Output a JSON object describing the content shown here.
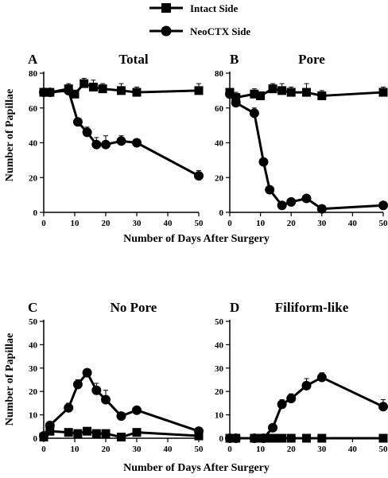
{
  "legend": {
    "items": [
      {
        "label": "Intact Side",
        "marker": "square"
      },
      {
        "label": "NeoCTX Side",
        "marker": "circle"
      }
    ]
  },
  "shared": {
    "xlabel": "Number of Days After Surgery",
    "ylabel": "Number of Papillae"
  },
  "chart_data": [
    {
      "type": "line",
      "panel": "A",
      "title": "Total",
      "xlim": [
        0,
        50
      ],
      "ylim": [
        0,
        80
      ],
      "xticks": [
        0,
        10,
        20,
        30,
        40,
        50
      ],
      "yticks": [
        0,
        20,
        40,
        60,
        80
      ],
      "series": [
        {
          "name": "Intact Side",
          "marker": "square",
          "x": [
            0,
            2,
            8,
            10,
            13,
            16,
            19,
            25,
            30,
            50
          ],
          "y": [
            69,
            69,
            71,
            68,
            74,
            72,
            71,
            70,
            69,
            70
          ],
          "err": [
            2,
            1,
            3,
            2,
            3,
            4,
            3,
            4,
            3,
            4
          ]
        },
        {
          "name": "NeoCTX Side",
          "marker": "circle",
          "x": [
            0,
            2,
            8,
            11,
            14,
            17,
            20,
            25,
            30,
            50
          ],
          "y": [
            69,
            69,
            70,
            52,
            46,
            39,
            39,
            41,
            40,
            21
          ],
          "err": [
            2,
            1,
            2,
            2,
            3,
            4,
            5,
            3,
            2,
            3
          ]
        }
      ]
    },
    {
      "type": "line",
      "panel": "B",
      "title": "Pore",
      "xlim": [
        0,
        50
      ],
      "ylim": [
        0,
        80
      ],
      "xticks": [
        0,
        10,
        20,
        30,
        40,
        50
      ],
      "yticks": [
        0,
        20,
        40,
        60,
        80
      ],
      "series": [
        {
          "name": "Intact Side",
          "marker": "square",
          "x": [
            0,
            2,
            8,
            10,
            14,
            17,
            20,
            25,
            30,
            50
          ],
          "y": [
            69,
            66,
            68,
            67,
            71,
            70,
            69,
            69,
            67,
            69
          ],
          "err": [
            2,
            3,
            3,
            2,
            3,
            4,
            3,
            5,
            3,
            3
          ]
        },
        {
          "name": "NeoCTX Side",
          "marker": "circle",
          "x": [
            0,
            2,
            8,
            11,
            13,
            17,
            20,
            25,
            30,
            50
          ],
          "y": [
            68,
            63,
            57,
            29,
            13,
            4,
            6,
            8,
            2,
            4
          ],
          "err": [
            2,
            3,
            3,
            2,
            2,
            1,
            1,
            1,
            1,
            1
          ]
        }
      ]
    },
    {
      "type": "line",
      "panel": "C",
      "title": "No Pore",
      "xlim": [
        0,
        50
      ],
      "ylim": [
        0,
        50
      ],
      "xticks": [
        0,
        10,
        20,
        30,
        40,
        50
      ],
      "yticks": [
        0,
        10,
        20,
        30,
        40,
        50
      ],
      "series": [
        {
          "name": "Intact Side",
          "marker": "square",
          "x": [
            0,
            2,
            8,
            11,
            14,
            17,
            20,
            25,
            30,
            50
          ],
          "y": [
            0.5,
            3,
            2.5,
            2,
            3,
            2,
            2,
            0.5,
            2.5,
            1
          ],
          "err": [
            0.5,
            0.5,
            0.5,
            0.5,
            0.5,
            0.5,
            0.5,
            0.5,
            0.5,
            0.5
          ]
        },
        {
          "name": "NeoCTX Side",
          "marker": "circle",
          "x": [
            0,
            2,
            8,
            11,
            14,
            17,
            20,
            25,
            30,
            50
          ],
          "y": [
            1,
            5.5,
            13,
            23,
            28,
            20.5,
            16.5,
            9.5,
            12,
            3
          ],
          "err": [
            0.5,
            1,
            2,
            2,
            1,
            3,
            4,
            1,
            1,
            1
          ]
        }
      ]
    },
    {
      "type": "line",
      "panel": "D",
      "title": "Filiform-like",
      "xlim": [
        0,
        50
      ],
      "ylim": [
        0,
        50
      ],
      "xticks": [
        0,
        10,
        20,
        30,
        40,
        50
      ],
      "yticks": [
        0,
        10,
        20,
        30,
        40,
        50
      ],
      "series": [
        {
          "name": "Intact Side",
          "marker": "square",
          "x": [
            0,
            2,
            8,
            10,
            11,
            12,
            13,
            14,
            15,
            17,
            20,
            25,
            30,
            50
          ],
          "y": [
            0,
            0,
            0,
            0,
            0,
            0,
            0,
            0,
            0,
            0,
            0,
            0,
            0,
            0
          ],
          "err": [
            0,
            0,
            0,
            0,
            0,
            0,
            0,
            0,
            0,
            0,
            0,
            0,
            0,
            0
          ]
        },
        {
          "name": "NeoCTX Side",
          "marker": "circle",
          "x": [
            0,
            2,
            8,
            11,
            14,
            17,
            20,
            25,
            30,
            50
          ],
          "y": [
            0,
            0,
            0,
            0,
            4.5,
            14.5,
            17,
            22.5,
            26,
            13.5
          ],
          "err": [
            0,
            0,
            0,
            0,
            0.5,
            2,
            2,
            3,
            2,
            3
          ]
        }
      ]
    }
  ]
}
